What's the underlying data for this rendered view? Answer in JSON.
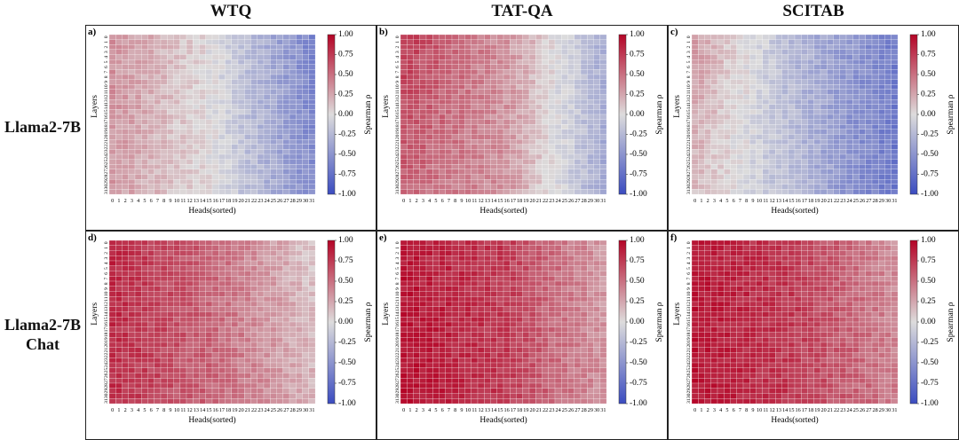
{
  "column_titles": [
    "WTQ",
    "TAT-QA",
    "SCITAB"
  ],
  "row_titles": [
    [
      "Llama2-7B"
    ],
    [
      "Llama2-7B",
      "Chat"
    ]
  ],
  "chart_data": {
    "type": "heatmap",
    "xlabel": "Heads(sorted)",
    "ylabel": "Layers",
    "colorbar_label": "Spearman ρ",
    "colorbar_ticks": [
      "1.00",
      "0.75",
      "0.50",
      "0.25",
      "0.00",
      "-0.25",
      "-0.50",
      "-0.75",
      "-1.00"
    ],
    "vmin": -1.0,
    "vmax": 1.0,
    "n_layers": 32,
    "n_heads": 32,
    "colors": {
      "high": "#b40426",
      "mid": "#dddcdc",
      "low": "#3b4cc0"
    },
    "panels": [
      {
        "label": "a)",
        "model": "Llama2-7B",
        "dataset": "WTQ",
        "approx_rho": {
          "layer_0_head_0": 0.35,
          "mid_layers_head_0": 0.3,
          "mid_layers_head_15": 0.0,
          "mid_layers_head_31": -0.55,
          "top_layers_head_31": -0.6
        }
      },
      {
        "label": "b)",
        "model": "Llama2-7B",
        "dataset": "TAT-QA",
        "approx_rho": {
          "layer_0_head_0": 0.75,
          "mid_layers_head_0": 0.55,
          "mid_layers_head_15": 0.35,
          "mid_layers_head_31": -0.35,
          "top_layers_head_31": -0.3
        }
      },
      {
        "label": "c)",
        "model": "Llama2-7B",
        "dataset": "SCITAB",
        "approx_rho": {
          "layer_0_head_0": 0.3,
          "mid_layers_head_0": 0.15,
          "mid_layers_head_15": -0.25,
          "mid_layers_head_31": -0.7,
          "top_layers_head_31": -0.65
        }
      },
      {
        "label": "d)",
        "model": "Llama2-7B Chat",
        "dataset": "WTQ",
        "approx_rho": {
          "layer_0_head_0": 0.85,
          "mid_layers_head_0": 0.8,
          "mid_layers_head_15": 0.55,
          "mid_layers_head_31": 0.2,
          "top_layers_head_31": 0.1
        }
      },
      {
        "label": "e)",
        "model": "Llama2-7B Chat",
        "dataset": "TAT-QA",
        "approx_rho": {
          "layer_0_head_0": 0.9,
          "mid_layers_head_0": 0.95,
          "mid_layers_head_15": 0.75,
          "mid_layers_head_31": 0.35,
          "top_layers_head_31": 0.3
        }
      },
      {
        "label": "f)",
        "model": "Llama2-7B Chat",
        "dataset": "SCITAB",
        "approx_rho": {
          "layer_0_head_0": 0.9,
          "mid_layers_head_0": 0.92,
          "mid_layers_head_15": 0.75,
          "mid_layers_head_31": 0.45,
          "top_layers_head_31": 0.35
        }
      }
    ]
  }
}
